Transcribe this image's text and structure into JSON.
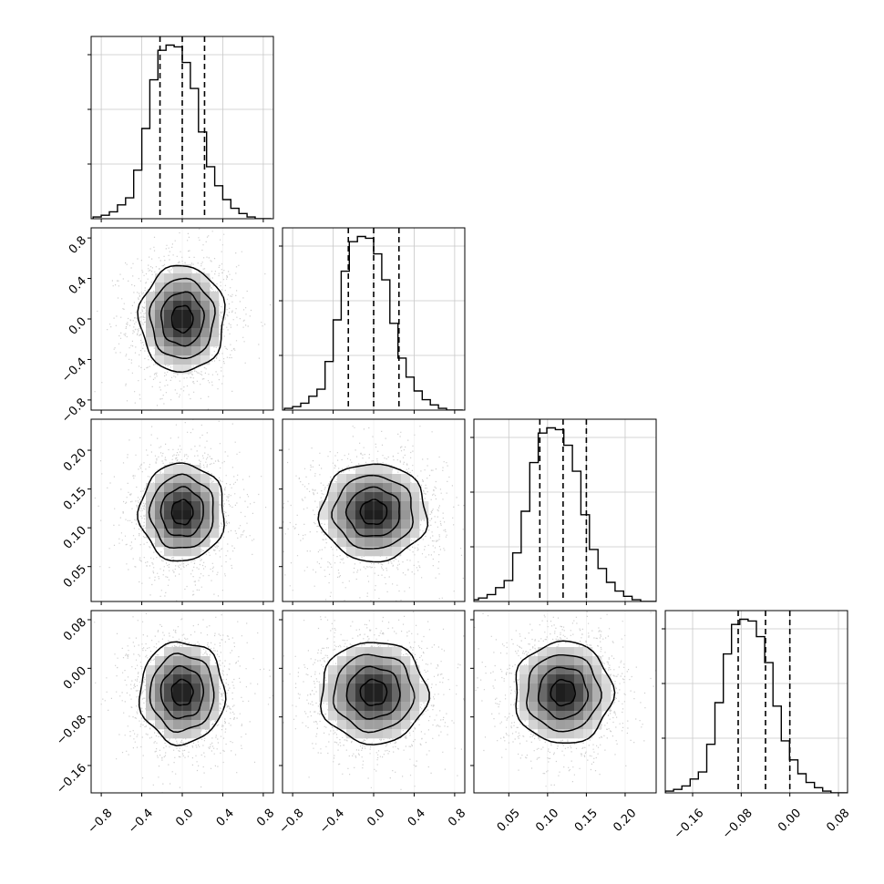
{
  "chart_data": {
    "type": "corner",
    "title": "",
    "grid": true,
    "colors": {
      "hist": "#000000",
      "points": "#a8a8a8",
      "contour": "#000000",
      "grid": "#c8c8c8"
    },
    "parameters": [
      {
        "index": 0,
        "mean": 0.0,
        "sigma": 0.2,
        "range": [
          -0.9,
          0.9
        ],
        "quantiles": [
          -0.22,
          0.0,
          0.22
        ],
        "ticks": [
          -0.8,
          -0.4,
          0.0,
          0.4,
          0.8
        ],
        "tick_labels": [
          "−0.8",
          "−0.4",
          "0.0",
          "0.4",
          "0.8"
        ]
      },
      {
        "index": 1,
        "mean": 0.0,
        "sigma": 0.25,
        "range": [
          -0.9,
          0.9
        ],
        "quantiles": [
          -0.25,
          0.0,
          0.25
        ],
        "ticks": [
          -0.8,
          -0.4,
          0.0,
          0.4,
          0.8
        ],
        "tick_labels": [
          "−0.8",
          "−0.4",
          "0.0",
          "0.4",
          "0.8"
        ]
      },
      {
        "index": 2,
        "mean": 0.12,
        "sigma": 0.03,
        "range": [
          0.005,
          0.24
        ],
        "quantiles": [
          0.09,
          0.12,
          0.15
        ],
        "ticks": [
          0.05,
          0.1,
          0.15,
          0.2
        ],
        "tick_labels": [
          "0.05",
          "0.10",
          "0.15",
          "0.20"
        ]
      },
      {
        "index": 3,
        "mean": -0.04,
        "sigma": 0.04,
        "range": [
          -0.205,
          0.095
        ],
        "quantiles": [
          -0.085,
          -0.04,
          0.0
        ],
        "ticks": [
          -0.16,
          -0.08,
          0.0,
          0.08
        ],
        "tick_labels": [
          "−0.16",
          "−0.08",
          "0.00",
          "0.08"
        ]
      }
    ],
    "histograms": [
      {
        "param": 0,
        "bins": [
          -0.88,
          -0.8,
          -0.72,
          -0.64,
          -0.56,
          -0.48,
          -0.4,
          -0.32,
          -0.24,
          -0.16,
          -0.08,
          0.0,
          0.08,
          0.16,
          0.24,
          0.32,
          0.4,
          0.48,
          0.56,
          0.64,
          0.72,
          0.8,
          0.88
        ],
        "counts": [
          0.01,
          0.02,
          0.04,
          0.08,
          0.12,
          0.28,
          0.52,
          0.8,
          0.97,
          1.0,
          0.99,
          0.9,
          0.75,
          0.5,
          0.3,
          0.19,
          0.11,
          0.06,
          0.03,
          0.01,
          0.0,
          0.0
        ]
      },
      {
        "param": 1,
        "bins": [
          -0.88,
          -0.8,
          -0.72,
          -0.64,
          -0.56,
          -0.48,
          -0.4,
          -0.32,
          -0.24,
          -0.16,
          -0.08,
          0.0,
          0.08,
          0.16,
          0.24,
          0.32,
          0.4,
          0.48,
          0.56,
          0.64,
          0.72,
          0.8,
          0.88
        ],
        "counts": [
          0.01,
          0.02,
          0.04,
          0.08,
          0.12,
          0.28,
          0.52,
          0.8,
          0.97,
          1.0,
          0.99,
          0.9,
          0.75,
          0.5,
          0.3,
          0.19,
          0.11,
          0.06,
          0.03,
          0.01,
          0.0,
          0.0
        ]
      },
      {
        "param": 2,
        "bins": [
          0.0,
          0.011,
          0.022,
          0.033,
          0.044,
          0.055,
          0.066,
          0.077,
          0.088,
          0.099,
          0.11,
          0.121,
          0.132,
          0.143,
          0.154,
          0.165,
          0.176,
          0.187,
          0.198,
          0.209,
          0.22,
          0.231,
          0.242
        ],
        "counts": [
          0.01,
          0.02,
          0.04,
          0.08,
          0.12,
          0.28,
          0.52,
          0.8,
          0.97,
          1.0,
          0.99,
          0.9,
          0.75,
          0.5,
          0.3,
          0.19,
          0.11,
          0.06,
          0.03,
          0.01,
          0.0,
          0.0
        ]
      },
      {
        "param": 3,
        "bins": [
          -0.205,
          -0.1914,
          -0.1777,
          -0.1641,
          -0.1505,
          -0.1368,
          -0.1232,
          -0.1095,
          -0.0959,
          -0.0823,
          -0.0686,
          -0.055,
          -0.0414,
          -0.0277,
          -0.0141,
          -0.0005,
          0.0132,
          0.0268,
          0.0405,
          0.0541,
          0.0677,
          0.0814,
          0.095
        ],
        "counts": [
          0.01,
          0.02,
          0.04,
          0.08,
          0.12,
          0.28,
          0.52,
          0.8,
          0.97,
          1.0,
          0.99,
          0.9,
          0.75,
          0.5,
          0.3,
          0.19,
          0.11,
          0.06,
          0.03,
          0.01,
          0.0,
          0.0
        ]
      }
    ],
    "contour_levels_sigma": [
      0.5,
      1.0,
      1.5,
      2.0
    ]
  }
}
